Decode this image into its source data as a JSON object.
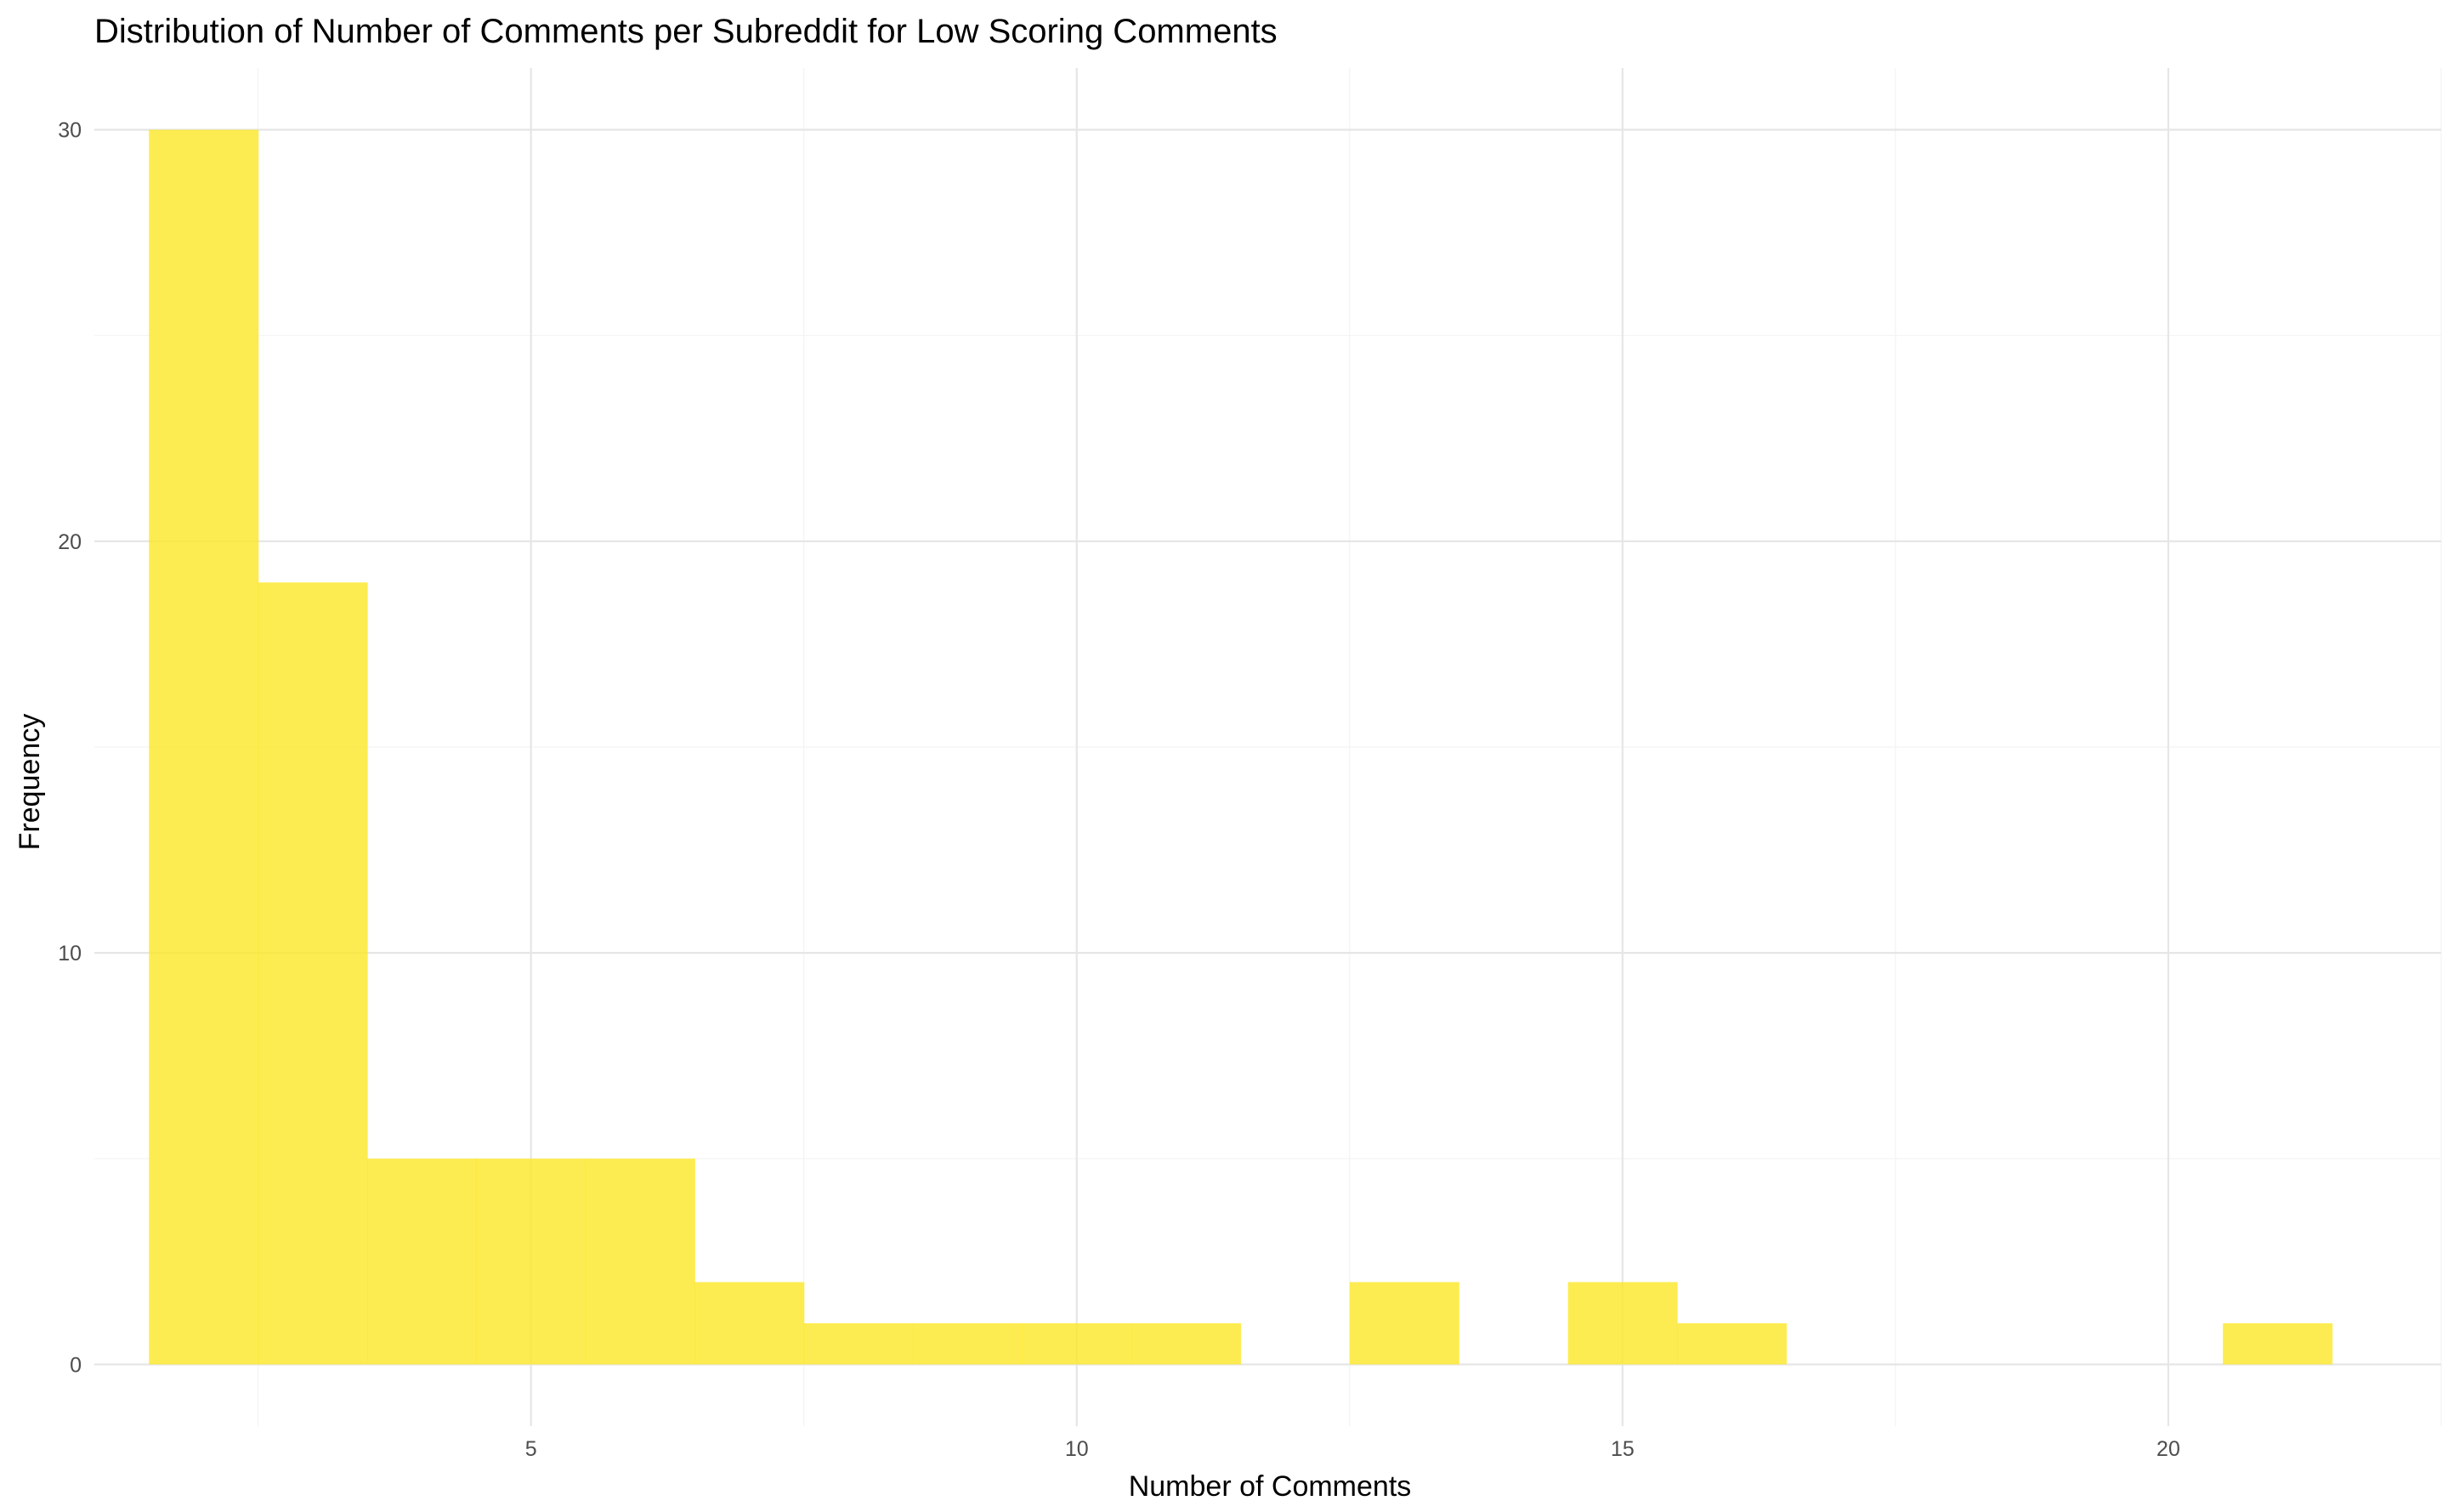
{
  "chart_data": {
    "type": "bar",
    "subtype": "histogram",
    "title": "Distribution of Number of Comments per Subreddit for Low Scoring Comments",
    "xlabel": "Number of Comments",
    "ylabel": "Frequency",
    "xlim": [
      1.0,
      22.5
    ],
    "ylim": [
      -1.5,
      31.5
    ],
    "x_ticks": [
      5,
      10,
      15,
      20
    ],
    "y_ticks": [
      0,
      10,
      20,
      30
    ],
    "grid": true,
    "bar_color": "#FDE725",
    "bar_opacity": 0.8,
    "bin_width": 1,
    "bins": [
      {
        "x": 2,
        "count": 30
      },
      {
        "x": 3,
        "count": 19
      },
      {
        "x": 4,
        "count": 5
      },
      {
        "x": 5,
        "count": 5
      },
      {
        "x": 6,
        "count": 5
      },
      {
        "x": 7,
        "count": 2
      },
      {
        "x": 8,
        "count": 1
      },
      {
        "x": 9,
        "count": 1
      },
      {
        "x": 10,
        "count": 1
      },
      {
        "x": 11,
        "count": 1
      },
      {
        "x": 12,
        "count": 0
      },
      {
        "x": 13,
        "count": 2
      },
      {
        "x": 14,
        "count": 0
      },
      {
        "x": 15,
        "count": 2
      },
      {
        "x": 16,
        "count": 1
      },
      {
        "x": 17,
        "count": 0
      },
      {
        "x": 18,
        "count": 0
      },
      {
        "x": 19,
        "count": 0
      },
      {
        "x": 20,
        "count": 0
      },
      {
        "x": 21,
        "count": 1
      }
    ]
  }
}
